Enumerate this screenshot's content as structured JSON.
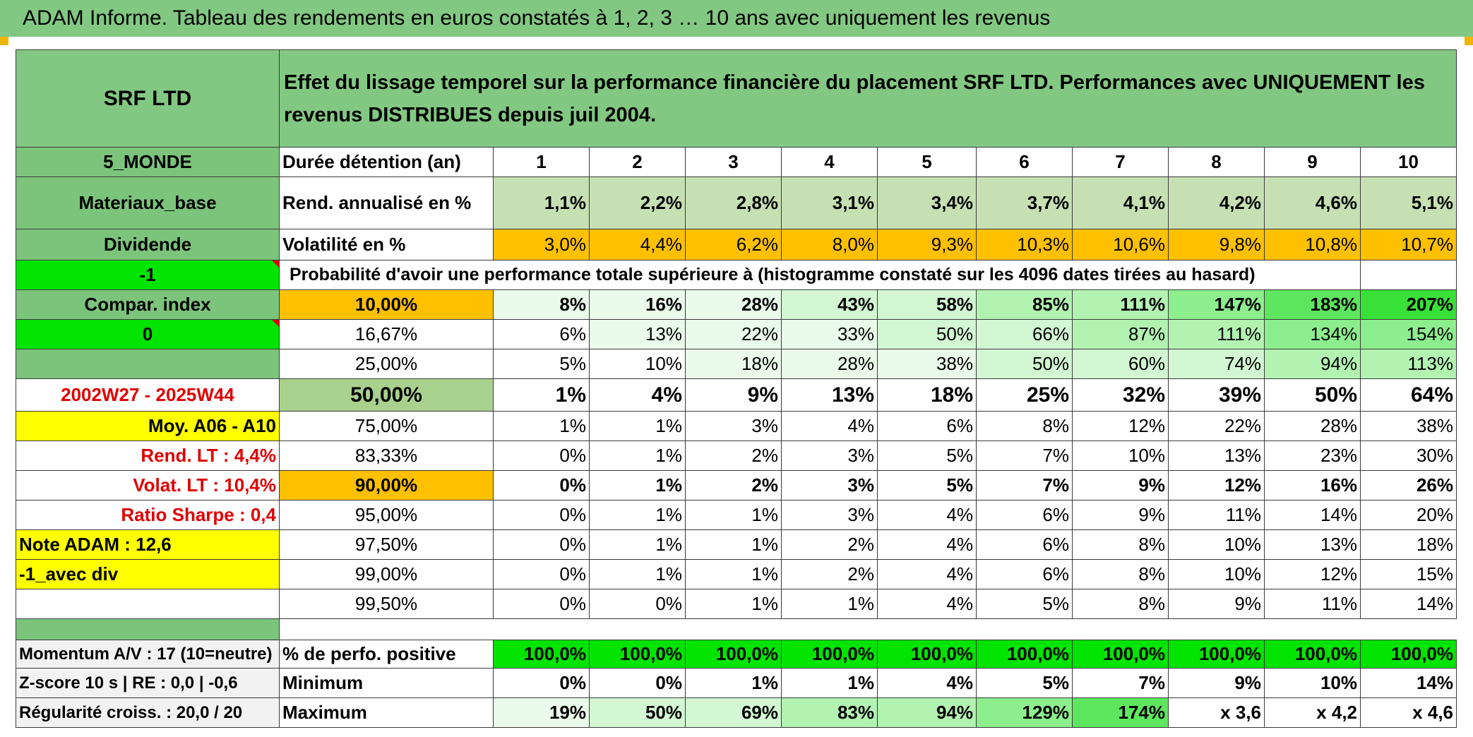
{
  "title": "ADAM Informe. Tableau des rendements en euros constatés à 1, 2, 3 … 10 ans avec uniquement les revenus",
  "fund_name": "SRF LTD",
  "description": "Effet du lissage temporel sur la performance financière du placement SRF LTD. Performances avec UNIQUEMENT les revenus DISTRIBUES depuis juil 2004.",
  "side": {
    "region": "5_MONDE",
    "sector": "Materiaux_base",
    "type": "Dividende",
    "code1": "-1",
    "compar_label": "Compar. index",
    "code2": "0",
    "period": "2002W27 - 2025W44",
    "moy_label": "Moy. A06 - A10",
    "rend_lt": "Rend. LT :   4,4%",
    "volat_lt": "Volat. LT :   10,4%",
    "sharpe": "Ratio Sharpe :   0,4",
    "note": "Note ADAM : 12,6",
    "variant": "-1_avec div",
    "momentum": "Momentum A/V : 17 (10=neutre)",
    "zscore": "Z-score 10 s | RE : 0,0 | -0,6",
    "regularite": "Régularité croiss. : 20,0 / 20"
  },
  "labels": {
    "duree": "Durée détention (an)",
    "rend": "Rend. annualisé en %",
    "vol": "Volatilité en %",
    "prob": "Probabilité d'avoir une performance totale supérieure à (histogramme constaté sur les 4096 dates tirées au hasard)",
    "positive": "% de perfo. positive",
    "minimum": "Minimum",
    "maximum": "Maximum"
  },
  "years": [
    "1",
    "2",
    "3",
    "4",
    "5",
    "6",
    "7",
    "8",
    "9",
    "10"
  ],
  "rend": [
    "1,1%",
    "2,2%",
    "2,8%",
    "3,1%",
    "3,4%",
    "3,7%",
    "4,1%",
    "4,2%",
    "4,6%",
    "5,1%"
  ],
  "vol": [
    "3,0%",
    "4,4%",
    "6,2%",
    "8,0%",
    "9,3%",
    "10,3%",
    "10,6%",
    "9,8%",
    "10,8%",
    "10,7%"
  ],
  "percentiles": [
    {
      "p": "10,00%",
      "v": [
        "8%",
        "16%",
        "28%",
        "43%",
        "58%",
        "85%",
        "111%",
        "147%",
        "183%",
        "207%"
      ]
    },
    {
      "p": "16,67%",
      "v": [
        "6%",
        "13%",
        "22%",
        "33%",
        "50%",
        "66%",
        "87%",
        "111%",
        "134%",
        "154%"
      ]
    },
    {
      "p": "25,00%",
      "v": [
        "5%",
        "10%",
        "18%",
        "28%",
        "38%",
        "50%",
        "60%",
        "74%",
        "94%",
        "113%"
      ]
    },
    {
      "p": "50,00%",
      "v": [
        "1%",
        "4%",
        "9%",
        "13%",
        "18%",
        "25%",
        "32%",
        "39%",
        "50%",
        "64%"
      ]
    },
    {
      "p": "75,00%",
      "v": [
        "1%",
        "1%",
        "3%",
        "4%",
        "6%",
        "8%",
        "12%",
        "22%",
        "28%",
        "38%"
      ]
    },
    {
      "p": "83,33%",
      "v": [
        "0%",
        "1%",
        "2%",
        "3%",
        "5%",
        "7%",
        "10%",
        "13%",
        "23%",
        "30%"
      ]
    },
    {
      "p": "90,00%",
      "v": [
        "0%",
        "1%",
        "2%",
        "3%",
        "5%",
        "7%",
        "9%",
        "12%",
        "16%",
        "26%"
      ]
    },
    {
      "p": "95,00%",
      "v": [
        "0%",
        "1%",
        "1%",
        "3%",
        "4%",
        "6%",
        "9%",
        "11%",
        "14%",
        "20%"
      ]
    },
    {
      "p": "97,50%",
      "v": [
        "0%",
        "1%",
        "1%",
        "2%",
        "4%",
        "6%",
        "8%",
        "10%",
        "13%",
        "18%"
      ]
    },
    {
      "p": "99,00%",
      "v": [
        "0%",
        "1%",
        "1%",
        "2%",
        "4%",
        "6%",
        "8%",
        "10%",
        "12%",
        "15%"
      ]
    },
    {
      "p": "99,50%",
      "v": [
        "0%",
        "0%",
        "1%",
        "1%",
        "4%",
        "5%",
        "8%",
        "9%",
        "11%",
        "14%"
      ]
    }
  ],
  "positive": [
    "100,0%",
    "100,0%",
    "100,0%",
    "100,0%",
    "100,0%",
    "100,0%",
    "100,0%",
    "100,0%",
    "100,0%",
    "100,0%"
  ],
  "minimum": [
    "0%",
    "0%",
    "1%",
    "1%",
    "4%",
    "5%",
    "7%",
    "9%",
    "10%",
    "14%"
  ],
  "maximum": [
    "19%",
    "50%",
    "69%",
    "83%",
    "94%",
    "129%",
    "174%",
    "x 3,6",
    "x 4,2",
    "x 4,6"
  ]
}
